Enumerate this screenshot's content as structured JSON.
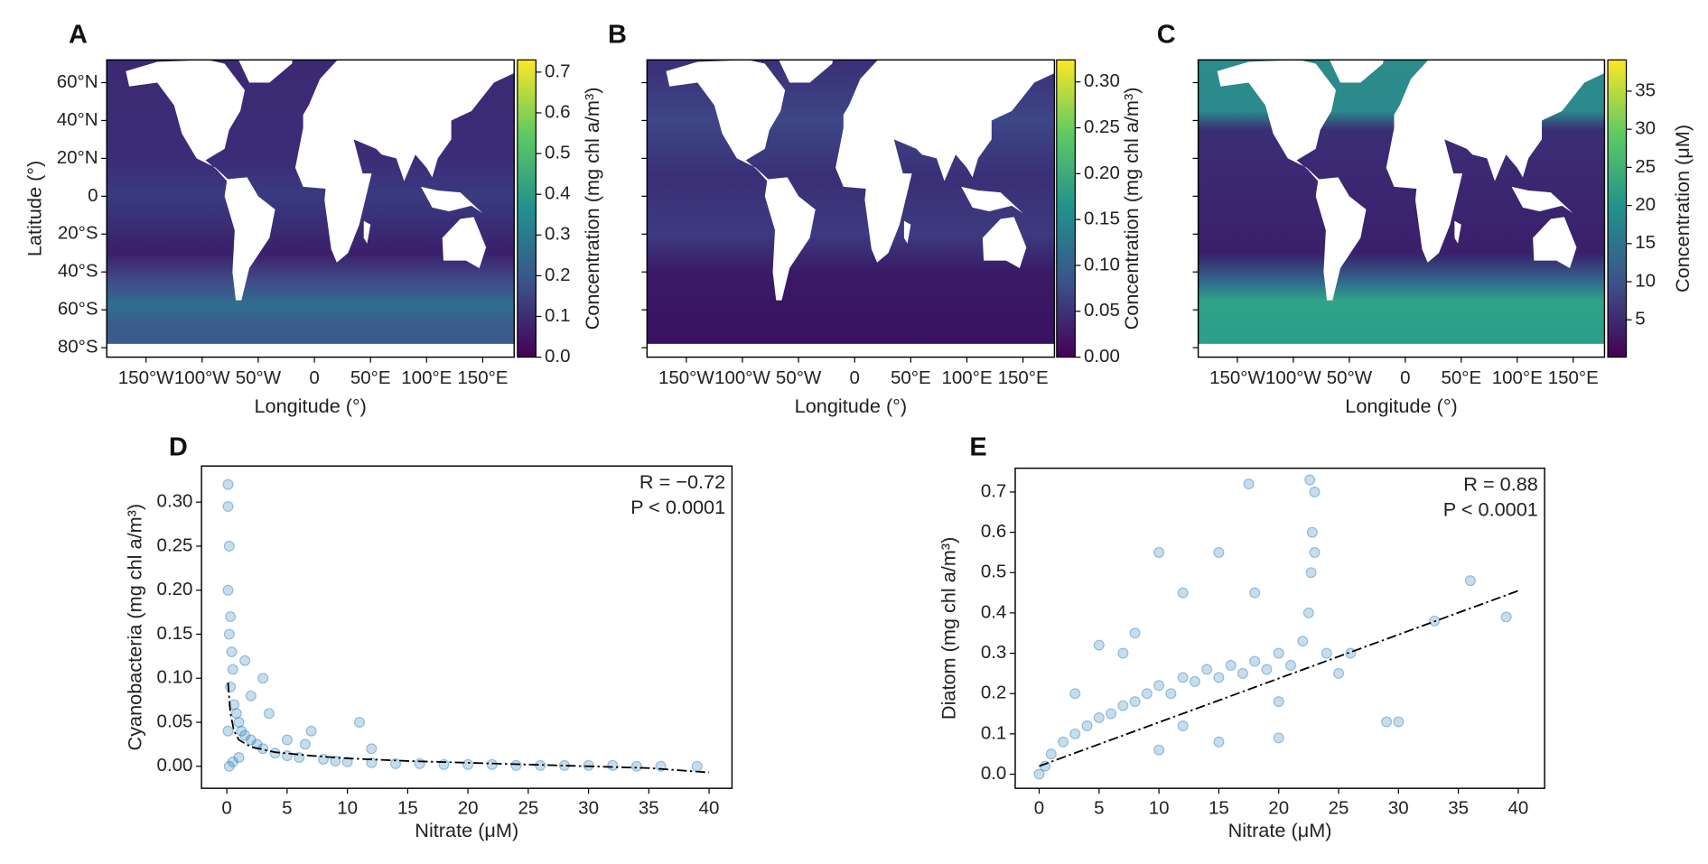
{
  "chart_data": [
    {
      "type": "map",
      "label": "A",
      "xlabel": "Longitude (°)",
      "ylabel": "Latitude (°)",
      "colorbar_label": "Concentration (mg chl a/m³)",
      "xlim": [
        -185,
        178
      ],
      "ylim": [
        -85,
        72
      ],
      "xticks": [
        {
          "value": -150,
          "label": "150°W"
        },
        {
          "value": -100,
          "label": "100°W"
        },
        {
          "value": -50,
          "label": "50°W"
        },
        0,
        {
          "value": 50,
          "label": "50°E"
        },
        {
          "value": 100,
          "label": "100°E"
        },
        {
          "value": 150,
          "label": "150°E"
        }
      ],
      "yticks": [
        {
          "value": 60,
          "label": "60°N"
        },
        {
          "value": 40,
          "label": "40°N"
        },
        {
          "value": 20,
          "label": "20°N"
        },
        0,
        {
          "value": -20,
          "label": "20°S"
        },
        {
          "value": -40,
          "label": "40°S"
        },
        {
          "value": -60,
          "label": "60°S"
        },
        {
          "value": -80,
          "label": "80°S"
        }
      ],
      "clim": [
        0,
        0.73
      ],
      "cticks": [
        {
          "value": 0,
          "label": "0.0"
        },
        0.1,
        0.2,
        0.3,
        0.4,
        0.5,
        0.6,
        0.7
      ],
      "colormap": [
        "#440154",
        "#3b528b",
        "#21918c",
        "#5ec962",
        "#fde725"
      ]
    },
    {
      "type": "map",
      "label": "B",
      "xlabel": "Longitude (°)",
      "colorbar_label": "Concentration (mg chl a/m³)",
      "xlim": [
        -185,
        178
      ],
      "ylim": [
        -85,
        72
      ],
      "xticks": [
        {
          "value": -150,
          "label": "150°W"
        },
        {
          "value": -100,
          "label": "100°W"
        },
        {
          "value": -50,
          "label": "50°W"
        },
        0,
        {
          "value": 50,
          "label": "50°E"
        },
        {
          "value": 100,
          "label": "100°E"
        },
        {
          "value": 150,
          "label": "150°E"
        }
      ],
      "yticks": [
        60,
        40,
        20,
        0,
        -20,
        -40,
        -60,
        -80
      ],
      "clim": [
        0,
        0.324
      ],
      "cticks": [
        {
          "value": 0,
          "label": "0.00"
        },
        0.05,
        {
          "value": 0.1,
          "label": "0.10"
        },
        0.15,
        {
          "value": 0.2,
          "label": "0.20"
        },
        0.25,
        {
          "value": 0.3,
          "label": "0.30"
        }
      ],
      "colormap": [
        "#440154",
        "#3b528b",
        "#21918c",
        "#5ec962",
        "#fde725"
      ]
    },
    {
      "type": "map",
      "label": "C",
      "xlabel": "Longitude (°)",
      "colorbar_label": "Concentration (μM)",
      "xlim": [
        -185,
        178
      ],
      "ylim": [
        -85,
        72
      ],
      "xticks": [
        {
          "value": -150,
          "label": "150°W"
        },
        {
          "value": -100,
          "label": "100°W"
        },
        {
          "value": -50,
          "label": "50°W"
        },
        0,
        {
          "value": 50,
          "label": "50°E"
        },
        {
          "value": 100,
          "label": "100°E"
        },
        {
          "value": 150,
          "label": "150°E"
        }
      ],
      "yticks": [
        60,
        40,
        20,
        0,
        -20,
        -40,
        -60,
        -80
      ],
      "clim": [
        0.1,
        39.1
      ],
      "cticks": [
        5,
        10,
        15,
        20,
        25,
        30,
        35
      ],
      "colormap": [
        "#440154",
        "#3b528b",
        "#21918c",
        "#5ec962",
        "#fde725"
      ]
    },
    {
      "type": "scatter",
      "label": "D",
      "xlabel": "Nitrate (μM)",
      "ylabel": "Cyanobacteria (mg chl a/m³)",
      "annotations": [
        "R = −0.72",
        "P < 0.0001"
      ],
      "color": "#1f77b4",
      "xlim": [
        -2.1,
        41.9
      ],
      "ylim": [
        -0.025,
        0.341
      ],
      "xticks": [
        0,
        5,
        10,
        15,
        20,
        25,
        30,
        35,
        40
      ],
      "yticks": [
        {
          "value": 0,
          "label": "0.00"
        },
        0.05,
        {
          "value": 0.1,
          "label": "0.10"
        },
        0.15,
        {
          "value": 0.2,
          "label": "0.20"
        },
        0.25,
        {
          "value": 0.3,
          "label": "0.30"
        }
      ],
      "x": [
        0.1,
        0.1,
        0.2,
        0.1,
        0.3,
        0.2,
        0.4,
        0.5,
        0.3,
        0.6,
        0.8,
        1,
        1.2,
        1.5,
        2,
        2.5,
        3,
        3.5,
        4,
        5,
        6,
        7,
        8,
        9,
        10,
        11,
        12,
        14,
        16,
        18,
        20,
        22,
        24,
        26,
        28,
        30,
        32,
        34,
        36,
        39,
        0.2,
        0.5,
        1,
        0.1,
        2,
        3,
        1.5,
        5,
        6.5,
        12
      ],
      "values": [
        0.32,
        0.295,
        0.25,
        0.2,
        0.17,
        0.15,
        0.13,
        0.11,
        0.09,
        0.07,
        0.06,
        0.05,
        0.04,
        0.035,
        0.03,
        0.025,
        0.02,
        0.06,
        0.015,
        0.012,
        0.01,
        0.04,
        0.008,
        0.006,
        0.005,
        0.05,
        0.004,
        0.003,
        0.003,
        0.002,
        0.002,
        0.002,
        0.001,
        0.001,
        0.001,
        0.001,
        0.001,
        0,
        0,
        0,
        0,
        0.005,
        0.01,
        0.04,
        0.08,
        0.1,
        0.12,
        0.03,
        0.025,
        0.02
      ],
      "fit": {
        "x": [
          0.1,
          0.3,
          0.6,
          1,
          2,
          4,
          7,
          10,
          15,
          20,
          25,
          30,
          35,
          40
        ],
        "values": [
          0.095,
          0.06,
          0.04,
          0.03,
          0.022,
          0.016,
          0.012,
          0.009,
          0.006,
          0.004,
          0.002,
          0,
          -0.002,
          -0.007
        ]
      }
    },
    {
      "type": "scatter",
      "label": "E",
      "xlabel": "Nitrate (μM)",
      "ylabel": "Diatom (mg chl a/m³)",
      "annotations": [
        "R = 0.88",
        "P < 0.0001"
      ],
      "color": "#1f77b4",
      "xlim": [
        -2.0,
        42.2
      ],
      "ylim": [
        -0.035,
        0.759
      ],
      "xticks": [
        0,
        5,
        10,
        15,
        20,
        25,
        30,
        35,
        40
      ],
      "yticks": [
        {
          "value": 0,
          "label": "0.0"
        },
        0.1,
        0.2,
        0.3,
        0.4,
        0.5,
        0.6,
        0.7
      ],
      "x": [
        0,
        0.5,
        1,
        2,
        3,
        4,
        5,
        6,
        7,
        8,
        9,
        10,
        11,
        12,
        13,
        14,
        15,
        16,
        17,
        18,
        19,
        20,
        21,
        22,
        22.5,
        22.7,
        22.8,
        23,
        22.6,
        23,
        24,
        25,
        26,
        29,
        30,
        33,
        36,
        39,
        15,
        12,
        10,
        5,
        8,
        18,
        20,
        15,
        10,
        7,
        3,
        17.5,
        12,
        20
      ],
      "values": [
        0,
        0.02,
        0.05,
        0.08,
        0.1,
        0.12,
        0.14,
        0.15,
        0.17,
        0.18,
        0.2,
        0.22,
        0.2,
        0.24,
        0.23,
        0.26,
        0.24,
        0.27,
        0.25,
        0.28,
        0.26,
        0.3,
        0.27,
        0.33,
        0.4,
        0.5,
        0.6,
        0.7,
        0.73,
        0.55,
        0.3,
        0.25,
        0.3,
        0.13,
        0.13,
        0.38,
        0.48,
        0.39,
        0.55,
        0.45,
        0.55,
        0.32,
        0.35,
        0.45,
        0.09,
        0.08,
        0.06,
        0.3,
        0.2,
        0.72,
        0.12,
        0.18
      ],
      "fit": {
        "x": [
          0,
          40
        ],
        "values": [
          0.02,
          0.455
        ]
      }
    }
  ]
}
